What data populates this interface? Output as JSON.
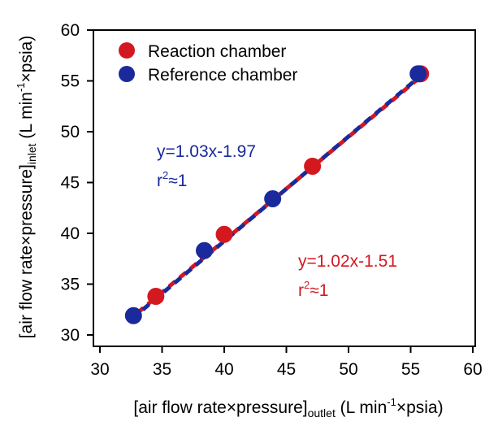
{
  "chart_data": {
    "type": "scatter",
    "xlabel": {
      "main": "[air flow rate×pressure]",
      "sub": "outlet",
      "units_pre": " (L min",
      "units_sup": "-1",
      "units_post": "×psia)"
    },
    "ylabel": {
      "main": "[air flow rate×pressure]",
      "sub": "inlet",
      "units_pre": " (L min",
      "units_sup": "-1",
      "units_post": "×psia)"
    },
    "xlim": [
      30,
      60
    ],
    "ylim": [
      30,
      60
    ],
    "xticks": [
      30,
      35,
      40,
      45,
      50,
      55,
      60
    ],
    "yticks": [
      30,
      35,
      40,
      45,
      50,
      55,
      60
    ],
    "grid": false,
    "legend_position": "top-left",
    "series": [
      {
        "name": "Reaction chamber",
        "color": "#d41820",
        "points": [
          {
            "x": 34.5,
            "y": 33.8
          },
          {
            "x": 40.0,
            "y": 39.9
          },
          {
            "x": 47.1,
            "y": 46.6
          },
          {
            "x": 55.8,
            "y": 55.7
          }
        ],
        "fit": {
          "slope": 1.02,
          "intercept": -1.51,
          "x_range": [
            33.0,
            56.0
          ]
        },
        "annotation": {
          "eq": "y=1.02x-1.51",
          "r2_pre": "r",
          "r2_sup": "2",
          "r2_post": "≈1"
        }
      },
      {
        "name": "Reference chamber",
        "color": "#1a2a9c",
        "points": [
          {
            "x": 32.7,
            "y": 31.9
          },
          {
            "x": 38.4,
            "y": 38.3
          },
          {
            "x": 43.9,
            "y": 43.4
          },
          {
            "x": 55.6,
            "y": 55.7
          }
        ],
        "fit": {
          "slope": 1.03,
          "intercept": -1.97,
          "x_range": [
            33.0,
            56.0
          ]
        },
        "annotation": {
          "eq": "y=1.03x-1.97",
          "r2_pre": "r",
          "r2_sup": "2",
          "r2_post": "≈1"
        }
      }
    ]
  }
}
